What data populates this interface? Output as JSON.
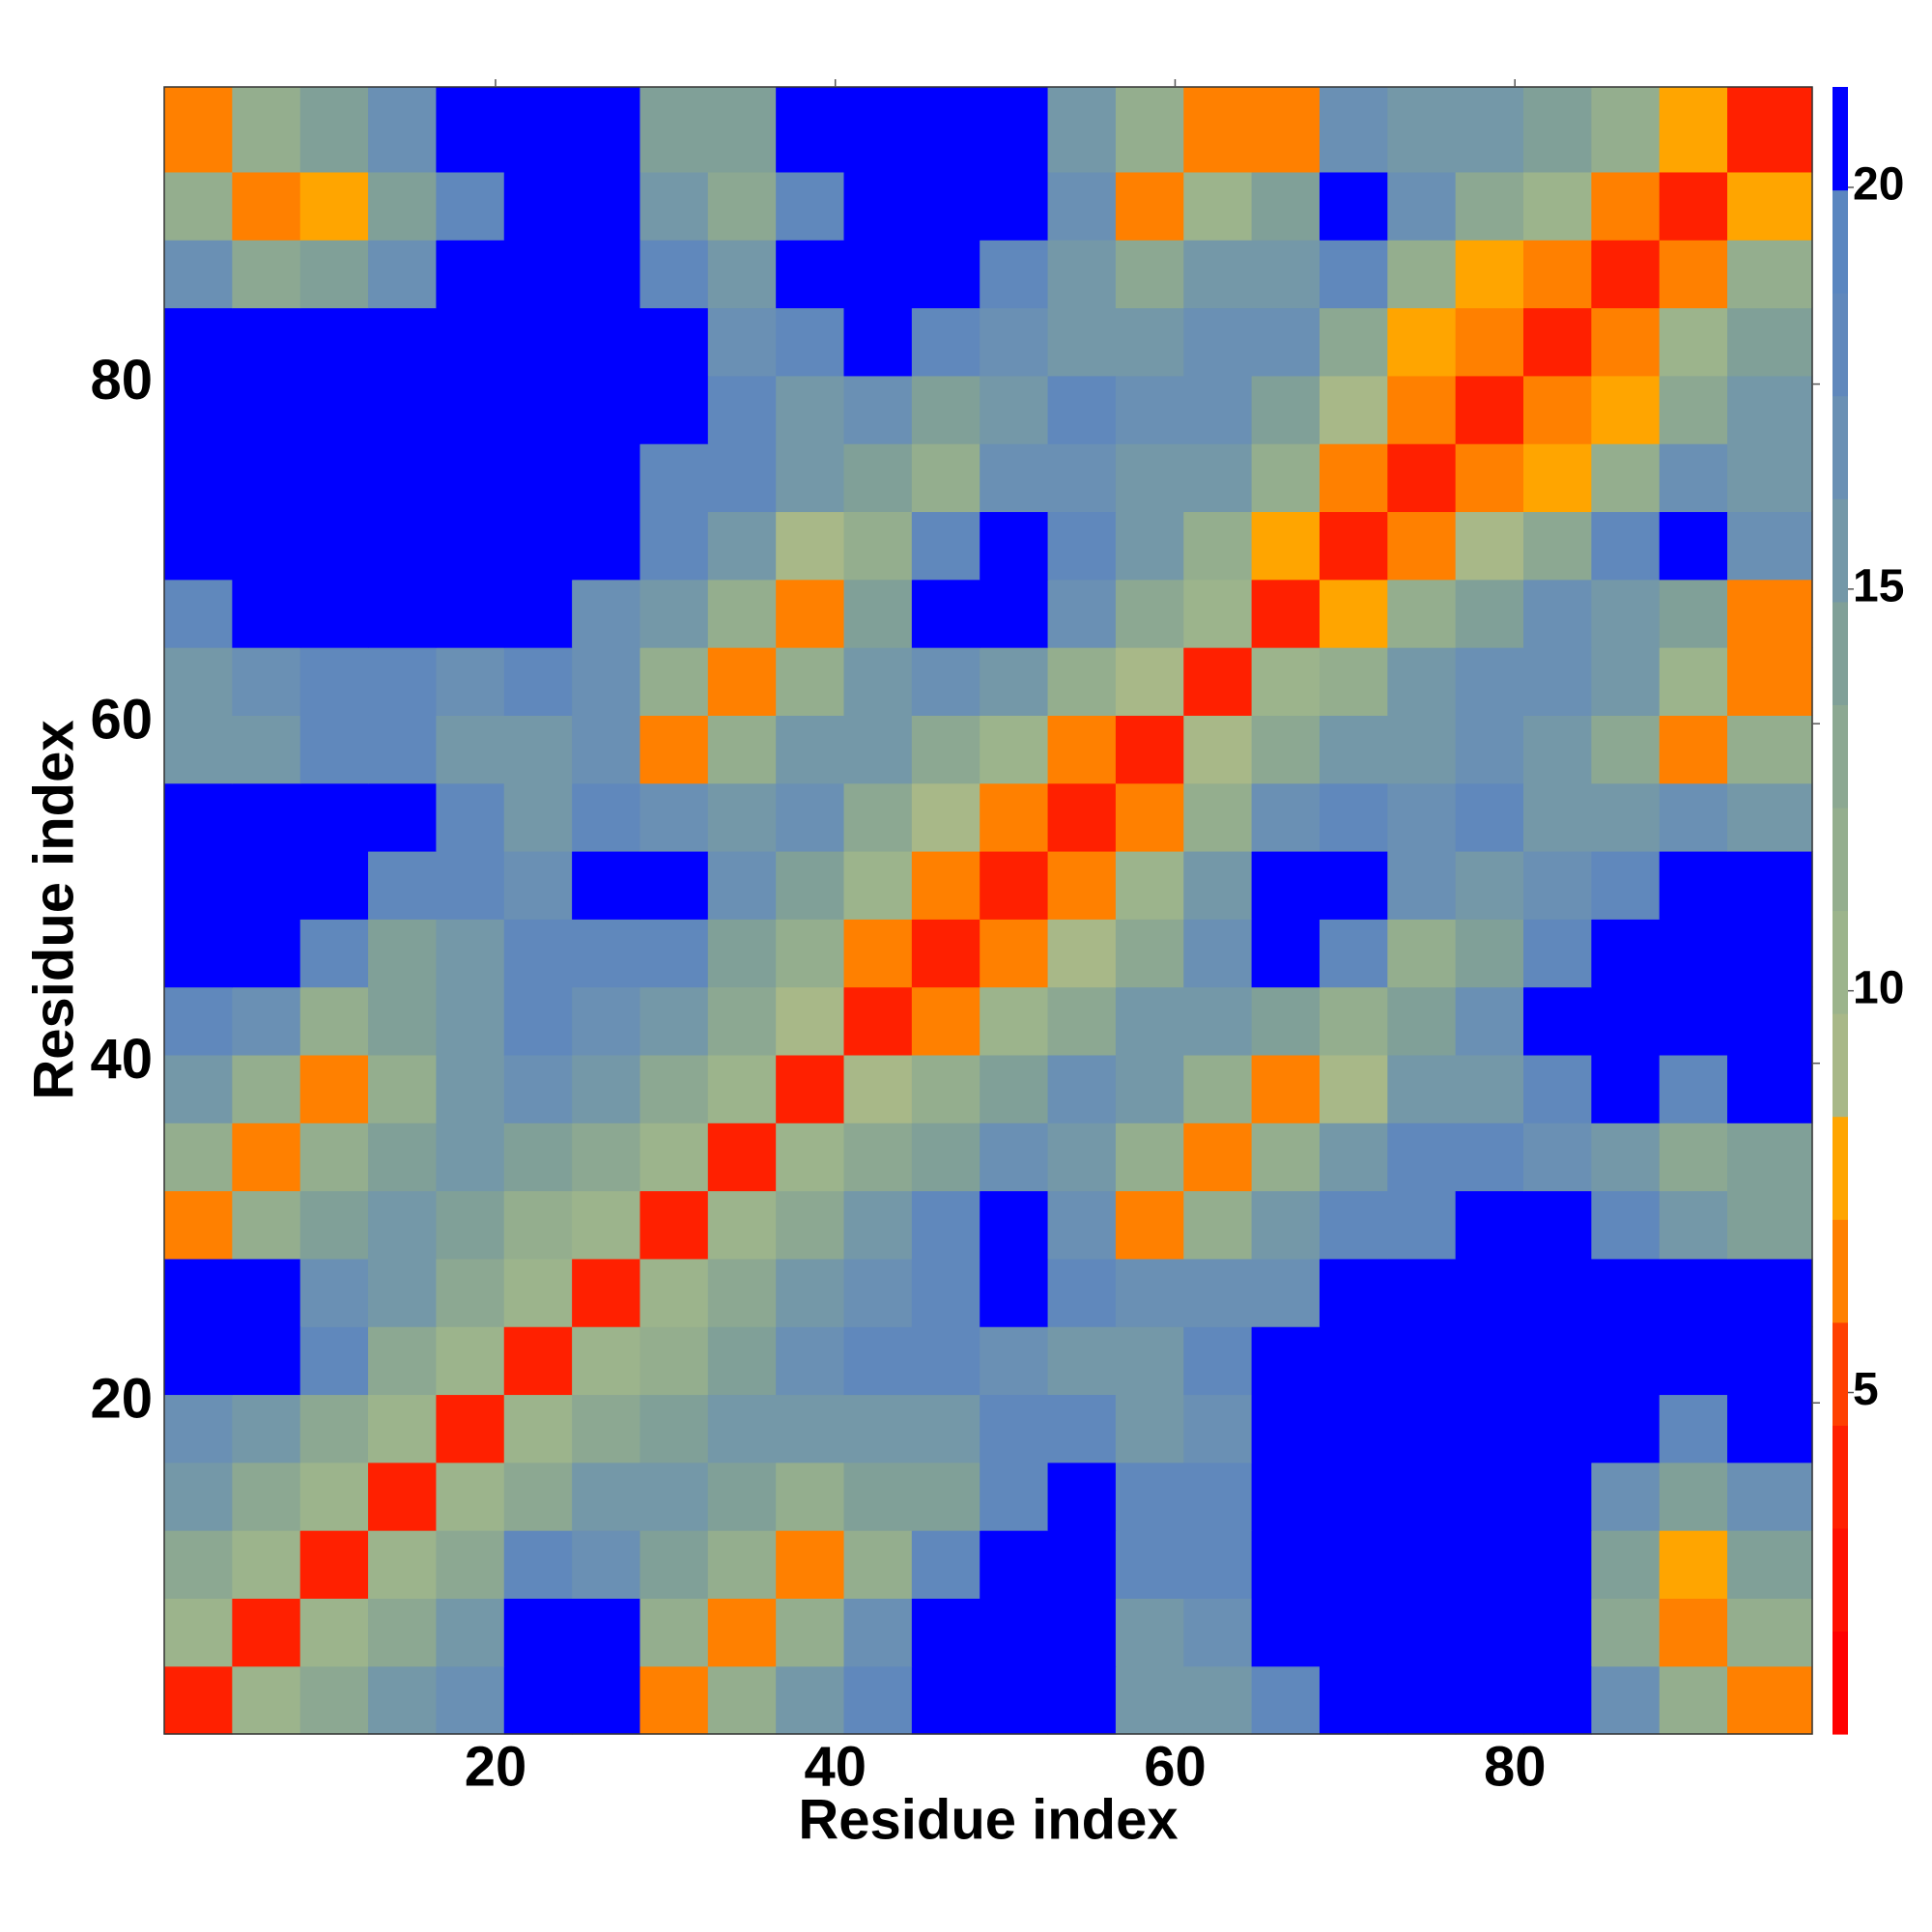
{
  "chart_data": {
    "type": "heatmap",
    "x_label": "Residue index",
    "y_label": "Residue index",
    "xlim": [
      0.5,
      97.5
    ],
    "ylim": [
      0.5,
      97.5
    ],
    "xticks": [
      20,
      40,
      60,
      80
    ],
    "yticks": [
      20,
      40,
      60,
      80
    ],
    "x_edges": [
      0.5,
      4.5,
      8.5,
      12.5,
      16.5,
      20.5,
      24.5,
      28.5,
      32.5,
      36.5,
      40.5,
      44.5,
      48.5,
      52.5,
      56.5,
      60.5,
      64.5,
      68.5,
      72.5,
      76.5,
      80.5,
      84.5,
      88.5,
      92.5,
      97.5
    ],
    "y_edges": [
      0.5,
      4.5,
      8.5,
      12.5,
      16.5,
      20.5,
      24.5,
      28.5,
      32.5,
      36.5,
      40.5,
      44.5,
      48.5,
      52.5,
      56.5,
      60.5,
      64.5,
      68.5,
      72.5,
      76.5,
      80.5,
      84.5,
      88.5,
      92.5,
      97.5
    ],
    "values": [
      [
        3.5,
        10,
        13,
        15,
        17,
        21,
        21,
        6,
        11,
        15,
        18,
        21,
        21,
        21,
        15,
        15,
        18,
        21,
        21,
        21,
        21,
        17,
        11,
        6
      ],
      [
        10,
        3.5,
        10,
        13,
        16,
        21,
        21,
        11,
        6,
        11,
        17,
        21,
        21,
        21,
        16,
        17,
        21,
        21,
        21,
        21,
        21,
        13,
        6,
        11
      ],
      [
        13,
        10,
        3.5,
        10,
        13,
        18,
        17,
        14,
        11,
        6,
        11,
        18,
        21,
        21,
        18,
        18,
        21,
        21,
        21,
        21,
        21,
        14,
        8,
        14
      ],
      [
        15,
        13,
        10,
        3.5,
        10,
        13,
        15,
        15,
        14,
        12,
        14,
        14,
        18,
        21,
        18,
        18,
        21,
        21,
        21,
        21,
        21,
        17,
        14,
        17
      ],
      [
        17,
        16,
        13,
        10,
        3.5,
        10,
        13,
        14,
        15,
        15,
        16,
        16,
        18,
        18,
        16,
        17,
        21,
        21,
        21,
        21,
        21,
        21,
        18,
        21
      ],
      [
        21,
        21,
        18,
        13,
        10,
        3.5,
        10,
        12,
        14,
        17,
        18,
        18,
        17,
        15,
        16,
        18,
        21,
        21,
        21,
        21,
        21,
        21,
        21,
        21
      ],
      [
        21,
        21,
        17,
        15,
        13,
        10,
        3.5,
        10,
        13,
        15,
        17,
        18,
        21,
        18,
        17,
        17,
        17,
        21,
        21,
        21,
        21,
        21,
        21,
        21
      ],
      [
        6,
        11,
        14,
        15,
        14,
        12,
        10,
        3.5,
        10,
        13,
        15,
        18,
        21,
        17,
        6,
        11,
        15,
        18,
        18,
        21,
        21,
        18,
        15,
        14
      ],
      [
        11,
        6,
        11,
        14,
        15,
        14,
        13,
        10,
        3.5,
        10,
        13,
        14,
        17,
        16,
        11,
        6,
        11,
        16,
        18,
        18,
        17,
        16,
        13,
        14
      ],
      [
        15,
        11,
        6,
        12,
        15,
        17,
        15,
        13,
        10,
        3.5,
        9,
        12,
        14,
        17,
        15,
        11,
        6,
        9,
        15,
        16,
        18,
        21,
        18,
        21
      ],
      [
        18,
        17,
        11,
        14,
        16,
        18,
        17,
        15,
        13,
        9,
        3.5,
        7,
        10,
        13,
        15,
        16,
        14,
        12,
        14,
        17,
        21,
        21,
        21,
        21
      ],
      [
        21,
        21,
        18,
        14,
        16,
        18,
        18,
        18,
        14,
        12,
        7,
        3.5,
        7,
        9,
        13,
        17,
        21,
        18,
        12,
        14,
        18,
        21,
        21,
        21
      ],
      [
        21,
        21,
        21,
        18,
        18,
        17,
        21,
        21,
        17,
        14,
        10,
        7,
        3.5,
        7,
        10,
        15,
        21,
        21,
        17,
        15,
        17,
        18,
        21,
        21
      ],
      [
        21,
        21,
        21,
        21,
        18,
        15,
        18,
        17,
        16,
        17,
        13,
        9,
        7,
        3.5,
        7,
        12,
        17,
        18,
        17,
        18,
        16,
        15,
        17,
        16
      ],
      [
        15,
        16,
        18,
        18,
        16,
        16,
        17,
        6,
        11,
        15,
        15,
        13,
        10,
        7,
        3.5,
        9,
        13,
        15,
        15,
        17,
        16,
        13,
        7,
        12
      ],
      [
        15,
        17,
        18,
        18,
        17,
        18,
        17,
        11,
        6,
        11,
        16,
        17,
        15,
        12,
        9,
        3.5,
        10,
        12,
        15,
        17,
        17,
        15,
        10,
        6
      ],
      [
        18,
        21,
        21,
        21,
        21,
        21,
        17,
        15,
        11,
        6,
        14,
        21,
        21,
        17,
        13,
        10,
        3.5,
        8,
        11,
        14,
        17,
        16,
        14,
        7
      ],
      [
        21,
        21,
        21,
        21,
        21,
        21,
        21,
        18,
        16,
        9,
        12,
        18,
        21,
        18,
        15,
        12,
        8,
        3.5,
        6,
        9,
        13,
        18,
        21,
        17
      ],
      [
        21,
        21,
        21,
        21,
        21,
        21,
        21,
        18,
        18,
        15,
        14,
        12,
        17,
        17,
        15,
        15,
        11,
        6,
        3.5,
        6,
        8,
        12,
        17,
        15
      ],
      [
        21,
        21,
        21,
        21,
        21,
        21,
        21,
        21,
        18,
        16,
        17,
        14,
        15,
        18,
        17,
        17,
        14,
        9,
        6,
        3.5,
        6,
        8,
        13,
        16
      ],
      [
        21,
        21,
        21,
        21,
        21,
        21,
        21,
        21,
        17,
        18,
        21,
        18,
        17,
        16,
        16,
        17,
        17,
        13,
        8,
        6,
        3.5,
        6,
        10,
        14
      ],
      [
        17,
        13,
        14,
        17,
        21,
        21,
        21,
        18,
        16,
        21,
        21,
        21,
        18,
        15,
        13,
        15,
        16,
        18,
        12,
        8,
        6,
        3.5,
        7,
        11
      ],
      [
        11,
        6,
        8,
        14,
        18,
        21,
        21,
        15,
        13,
        18,
        21,
        21,
        21,
        17,
        7,
        10,
        14,
        21,
        17,
        13,
        10,
        7,
        3.5,
        8
      ],
      [
        6,
        11,
        14,
        17,
        21,
        21,
        21,
        14,
        14,
        21,
        21,
        21,
        21,
        16,
        12,
        6,
        7,
        17,
        15,
        16,
        14,
        11,
        8,
        3.5
      ]
    ],
    "clim": [
      0.75,
      21.25
    ],
    "cticks": [
      5,
      10,
      15,
      20
    ],
    "colors": [
      "#ff0000",
      "#ff1000",
      "#ff2000",
      "#ff4000",
      "#ff8000",
      "#ffa500",
      "#a8b888",
      "#9cb48c",
      "#94ae8e",
      "#8ca892",
      "#80a098",
      "#7498a8",
      "#6a90b4",
      "#6088bc",
      "#5a86c0",
      "#0000ff"
    ]
  }
}
